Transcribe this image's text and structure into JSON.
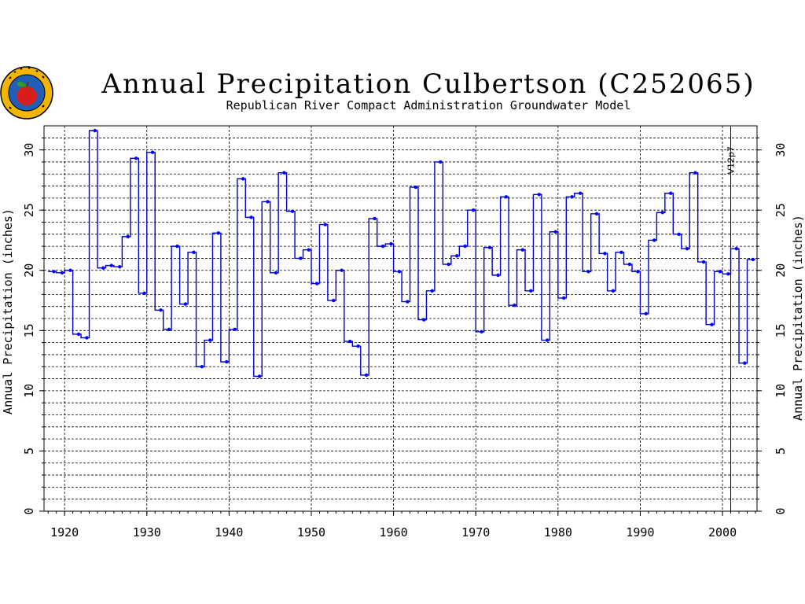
{
  "logo": {
    "name": "apple-seal-logo",
    "ring_text": "REPUBLICAN RIVER COMPACT",
    "colors": {
      "outer": "#f2b600",
      "inner": "#1f5fb8",
      "apple": "#d81d1d",
      "leaf": "#2c9b2c"
    }
  },
  "chart_data": {
    "type": "line",
    "step": true,
    "title": "Annual Precipitation Culbertson (C252065)",
    "subtitle": "Republican River Compact Administration Groundwater Model",
    "ylabel": "Annual Precipitation (inches)",
    "ylabel_right": "Annual Precipitation (inches)",
    "xlabel": "",
    "xlim": [
      1917.5,
      2004.2
    ],
    "ylim": [
      0,
      32
    ],
    "x_ticks": [
      1920,
      1930,
      1940,
      1950,
      1960,
      1970,
      1980,
      1990,
      2000
    ],
    "x_tick_labels": [
      "1920",
      "1930",
      "1940",
      "1950",
      "1960",
      "1970",
      "1980",
      "1990",
      "2000"
    ],
    "y_ticks": [
      0,
      5,
      10,
      15,
      20,
      25,
      30
    ],
    "y_tick_labels": [
      "0",
      "5",
      "10",
      "15",
      "20",
      "25",
      "30"
    ],
    "y_minor_step": 1,
    "grid": true,
    "line_color": "#0000cc",
    "marker_color": "#0000ff",
    "annotation": {
      "x": 2001,
      "label": "V12p7"
    },
    "series": [
      {
        "x": [
          1918,
          1919,
          1920,
          1921,
          1922,
          1923,
          1924,
          1925,
          1926,
          1927,
          1928,
          1929,
          1930,
          1931,
          1932,
          1933,
          1934,
          1935,
          1936,
          1937,
          1938,
          1939,
          1940,
          1941,
          1942,
          1943,
          1944,
          1945,
          1946,
          1947,
          1948,
          1949,
          1950,
          1951,
          1952,
          1953,
          1954,
          1955,
          1956,
          1957,
          1958,
          1959,
          1960,
          1961,
          1962,
          1963,
          1964,
          1965,
          1966,
          1967,
          1968,
          1969,
          1970,
          1971,
          1972,
          1973,
          1974,
          1975,
          1976,
          1977,
          1978,
          1979,
          1980,
          1981,
          1982,
          1983,
          1984,
          1985,
          1986,
          1987,
          1988,
          1989,
          1990,
          1991,
          1992,
          1993,
          1994,
          1995,
          1996,
          1997,
          1998,
          1999,
          2000,
          2001,
          2002,
          2003
        ],
        "values": [
          19.9,
          19.8,
          20.0,
          14.7,
          14.4,
          31.6,
          20.2,
          20.4,
          20.3,
          22.8,
          29.3,
          18.1,
          29.8,
          16.7,
          15.1,
          22.0,
          17.2,
          21.5,
          12.0,
          14.2,
          23.1,
          12.4,
          15.1,
          27.6,
          24.4,
          11.2,
          25.7,
          19.8,
          28.1,
          24.9,
          21.0,
          21.7,
          18.9,
          23.8,
          17.5,
          20.0,
          14.1,
          13.7,
          11.3,
          24.3,
          22.0,
          22.2,
          19.9,
          17.4,
          26.9,
          15.9,
          18.3,
          29.0,
          20.5,
          21.2,
          22.0,
          25.0,
          14.9,
          21.9,
          19.6,
          26.1,
          17.1,
          21.7,
          18.3,
          26.3,
          14.2,
          23.2,
          17.7,
          26.1,
          26.4,
          19.9,
          24.7,
          21.4,
          18.3,
          21.5,
          20.5,
          19.9,
          16.4,
          22.5,
          24.8,
          26.4,
          23.0,
          21.8,
          28.1,
          20.7,
          15.5,
          19.9,
          19.7,
          21.8,
          12.3,
          20.9
        ]
      }
    ]
  }
}
